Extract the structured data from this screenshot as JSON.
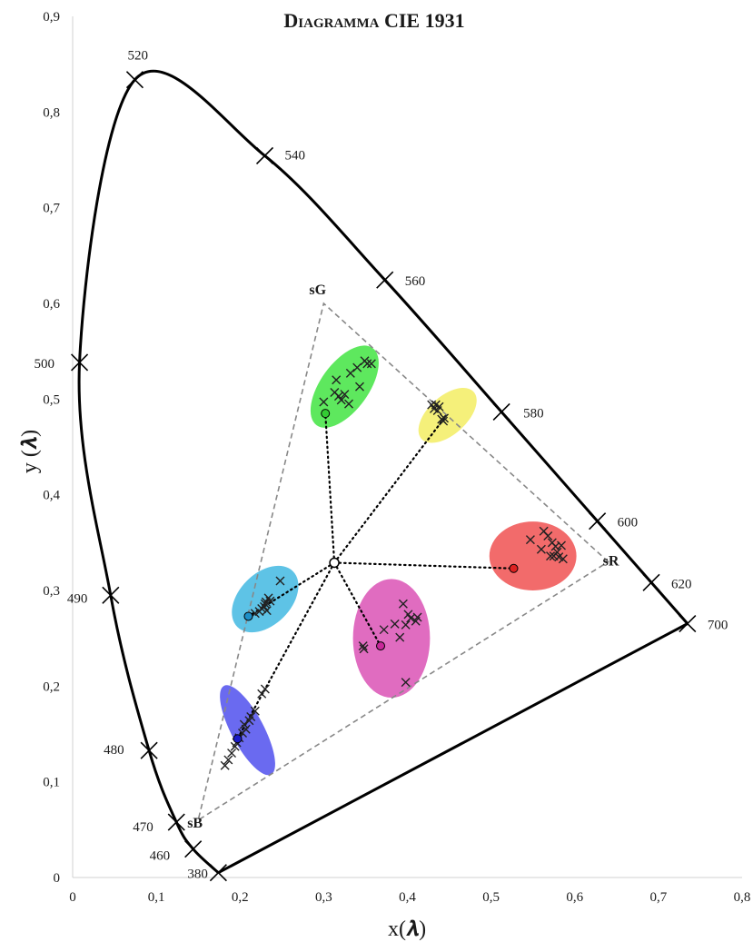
{
  "chart_data": {
    "type": "scatter",
    "title": "Diagramma CIE 1931",
    "xlabel": "x(𝝀)",
    "ylabel": "y (𝝀)",
    "xlim": [
      0,
      0.8
    ],
    "ylim": [
      0,
      0.9
    ],
    "x_ticks": [
      "0",
      "0,1",
      "0,2",
      "0,3",
      "0,4",
      "0,5",
      "0,6",
      "0,7",
      "0,8"
    ],
    "y_ticks": [
      "0",
      "0,1",
      "0,2",
      "0,3",
      "0,4",
      "0,5",
      "0,6",
      "0,7",
      "0,8",
      "0,9"
    ],
    "grid": false,
    "spectral_locus": [
      [
        0.1741,
        0.005
      ],
      [
        0.144,
        0.0297
      ],
      [
        0.124,
        0.0578
      ],
      [
        0.0913,
        0.1327
      ],
      [
        0.0454,
        0.295
      ],
      [
        0.0082,
        0.5384
      ],
      [
        0.0743,
        0.8338
      ],
      [
        0.2296,
        0.7543
      ],
      [
        0.3731,
        0.6245
      ],
      [
        0.5125,
        0.4866
      ],
      [
        0.627,
        0.3725
      ],
      [
        0.6915,
        0.3083
      ],
      [
        0.7347,
        0.2653
      ]
    ],
    "wavelength_markers": [
      {
        "label": "380",
        "x": 0.1741,
        "y": 0.005
      },
      {
        "label": "460",
        "x": 0.144,
        "y": 0.0297
      },
      {
        "label": "470",
        "x": 0.124,
        "y": 0.0578
      },
      {
        "label": "480",
        "x": 0.0913,
        "y": 0.1327
      },
      {
        "label": "490",
        "x": 0.0454,
        "y": 0.295
      },
      {
        "label": "500",
        "x": 0.0082,
        "y": 0.5384
      },
      {
        "label": "520",
        "x": 0.0743,
        "y": 0.8338
      },
      {
        "label": "540",
        "x": 0.2296,
        "y": 0.7543
      },
      {
        "label": "560",
        "x": 0.3731,
        "y": 0.6245
      },
      {
        "label": "580",
        "x": 0.5125,
        "y": 0.4866
      },
      {
        "label": "600",
        "x": 0.627,
        "y": 0.3725
      },
      {
        "label": "620",
        "x": 0.6915,
        "y": 0.3083
      },
      {
        "label": "700",
        "x": 0.7347,
        "y": 0.2653
      }
    ],
    "srgb_primaries": [
      {
        "label": "sR",
        "x": 0.64,
        "y": 0.33
      },
      {
        "label": "sG",
        "x": 0.3,
        "y": 0.6
      },
      {
        "label": "sB",
        "x": 0.15,
        "y": 0.06
      }
    ],
    "white_point": {
      "x": 0.3127,
      "y": 0.329
    },
    "clusters": [
      {
        "name": "green",
        "fill": "#5ee85e",
        "marker": "#33cc33",
        "ellipse": {
          "cx": 0.325,
          "cy": 0.513,
          "rx": 0.057,
          "ry": 0.025,
          "angle_deg": 54
        },
        "centroid": {
          "x": 0.302,
          "y": 0.485
        },
        "points": [
          [
            0.3,
            0.497
          ],
          [
            0.313,
            0.507
          ],
          [
            0.315,
            0.52
          ],
          [
            0.321,
            0.499
          ],
          [
            0.325,
            0.505
          ],
          [
            0.33,
            0.495
          ],
          [
            0.332,
            0.527
          ],
          [
            0.34,
            0.533
          ],
          [
            0.343,
            0.513
          ],
          [
            0.349,
            0.54
          ],
          [
            0.352,
            0.537
          ],
          [
            0.357,
            0.537
          ],
          [
            0.318,
            0.503
          ]
        ]
      },
      {
        "name": "yellow",
        "fill": "#f5f07a",
        "marker": "#e8e000",
        "ellipse": {
          "cx": 0.448,
          "cy": 0.483,
          "rx": 0.042,
          "ry": 0.02,
          "angle_deg": 42
        },
        "centroid": null,
        "points": [
          [
            0.429,
            0.494
          ],
          [
            0.432,
            0.49
          ],
          [
            0.434,
            0.494
          ],
          [
            0.436,
            0.488
          ],
          [
            0.441,
            0.479
          ],
          [
            0.443,
            0.477
          ],
          [
            0.444,
            0.48
          ],
          [
            0.438,
            0.492
          ]
        ]
      },
      {
        "name": "red",
        "fill": "#f26b6b",
        "marker": "#dd2222",
        "ellipse": {
          "cx": 0.55,
          "cy": 0.336,
          "rx": 0.052,
          "ry": 0.036,
          "angle_deg": 0
        },
        "centroid": {
          "x": 0.527,
          "y": 0.323
        },
        "points": [
          [
            0.547,
            0.353
          ],
          [
            0.56,
            0.343
          ],
          [
            0.563,
            0.362
          ],
          [
            0.568,
            0.357
          ],
          [
            0.573,
            0.35
          ],
          [
            0.577,
            0.346
          ],
          [
            0.579,
            0.34
          ],
          [
            0.581,
            0.335
          ],
          [
            0.586,
            0.333
          ],
          [
            0.571,
            0.336
          ],
          [
            0.575,
            0.336
          ],
          [
            0.584,
            0.347
          ]
        ]
      },
      {
        "name": "cyan",
        "fill": "#5ec3e6",
        "marker": "#1e90c8",
        "ellipse": {
          "cx": 0.23,
          "cy": 0.291,
          "rx": 0.047,
          "ry": 0.027,
          "angle_deg": 45
        },
        "centroid": {
          "x": 0.21,
          "y": 0.273
        },
        "points": [
          [
            0.218,
            0.276
          ],
          [
            0.223,
            0.278
          ],
          [
            0.226,
            0.281
          ],
          [
            0.229,
            0.283
          ],
          [
            0.231,
            0.288
          ],
          [
            0.234,
            0.292
          ],
          [
            0.236,
            0.289
          ],
          [
            0.23,
            0.286
          ],
          [
            0.248,
            0.31
          ],
          [
            0.232,
            0.279
          ]
        ]
      },
      {
        "name": "magenta",
        "fill": "#e06cc0",
        "marker": "#c8289a",
        "ellipse": {
          "cx": 0.381,
          "cy": 0.25,
          "rx": 0.046,
          "ry": 0.062,
          "angle_deg": 0
        },
        "centroid": {
          "x": 0.368,
          "y": 0.242
        },
        "points": [
          [
            0.347,
            0.242
          ],
          [
            0.348,
            0.239
          ],
          [
            0.372,
            0.259
          ],
          [
            0.385,
            0.265
          ],
          [
            0.395,
            0.286
          ],
          [
            0.398,
            0.264
          ],
          [
            0.401,
            0.275
          ],
          [
            0.404,
            0.271
          ],
          [
            0.41,
            0.268
          ],
          [
            0.412,
            0.272
          ],
          [
            0.391,
            0.251
          ],
          [
            0.398,
            0.204
          ]
        ]
      },
      {
        "name": "blue",
        "fill": "#6a6af0",
        "marker": "#1c1cc8",
        "ellipse": {
          "cx": 0.209,
          "cy": 0.154,
          "rx": 0.06,
          "ry": 0.017,
          "angle_deg": -62
        },
        "centroid": {
          "x": 0.197,
          "y": 0.145
        },
        "points": [
          [
            0.182,
            0.117
          ],
          [
            0.186,
            0.123
          ],
          [
            0.19,
            0.13
          ],
          [
            0.194,
            0.137
          ],
          [
            0.199,
            0.146
          ],
          [
            0.203,
            0.151
          ],
          [
            0.205,
            0.16
          ],
          [
            0.211,
            0.164
          ],
          [
            0.213,
            0.168
          ],
          [
            0.218,
            0.174
          ],
          [
            0.226,
            0.192
          ],
          [
            0.23,
            0.197
          ],
          [
            0.196,
            0.141
          ],
          [
            0.207,
            0.155
          ]
        ]
      }
    ],
    "link_lines": [
      {
        "from": "white_point",
        "to": [
          0.302,
          0.485
        ]
      },
      {
        "from": "white_point",
        "to": [
          0.444,
          0.48
        ]
      },
      {
        "from": "white_point",
        "to": [
          0.527,
          0.323
        ]
      },
      {
        "from": "white_point",
        "to": [
          0.21,
          0.273
        ]
      },
      {
        "from": "white_point",
        "to": [
          0.368,
          0.242
        ]
      },
      {
        "from": "white_point",
        "to": [
          0.23,
          0.197
        ]
      },
      {
        "from": [
          0.23,
          0.197
        ],
        "to": [
          0.197,
          0.145
        ]
      }
    ]
  }
}
